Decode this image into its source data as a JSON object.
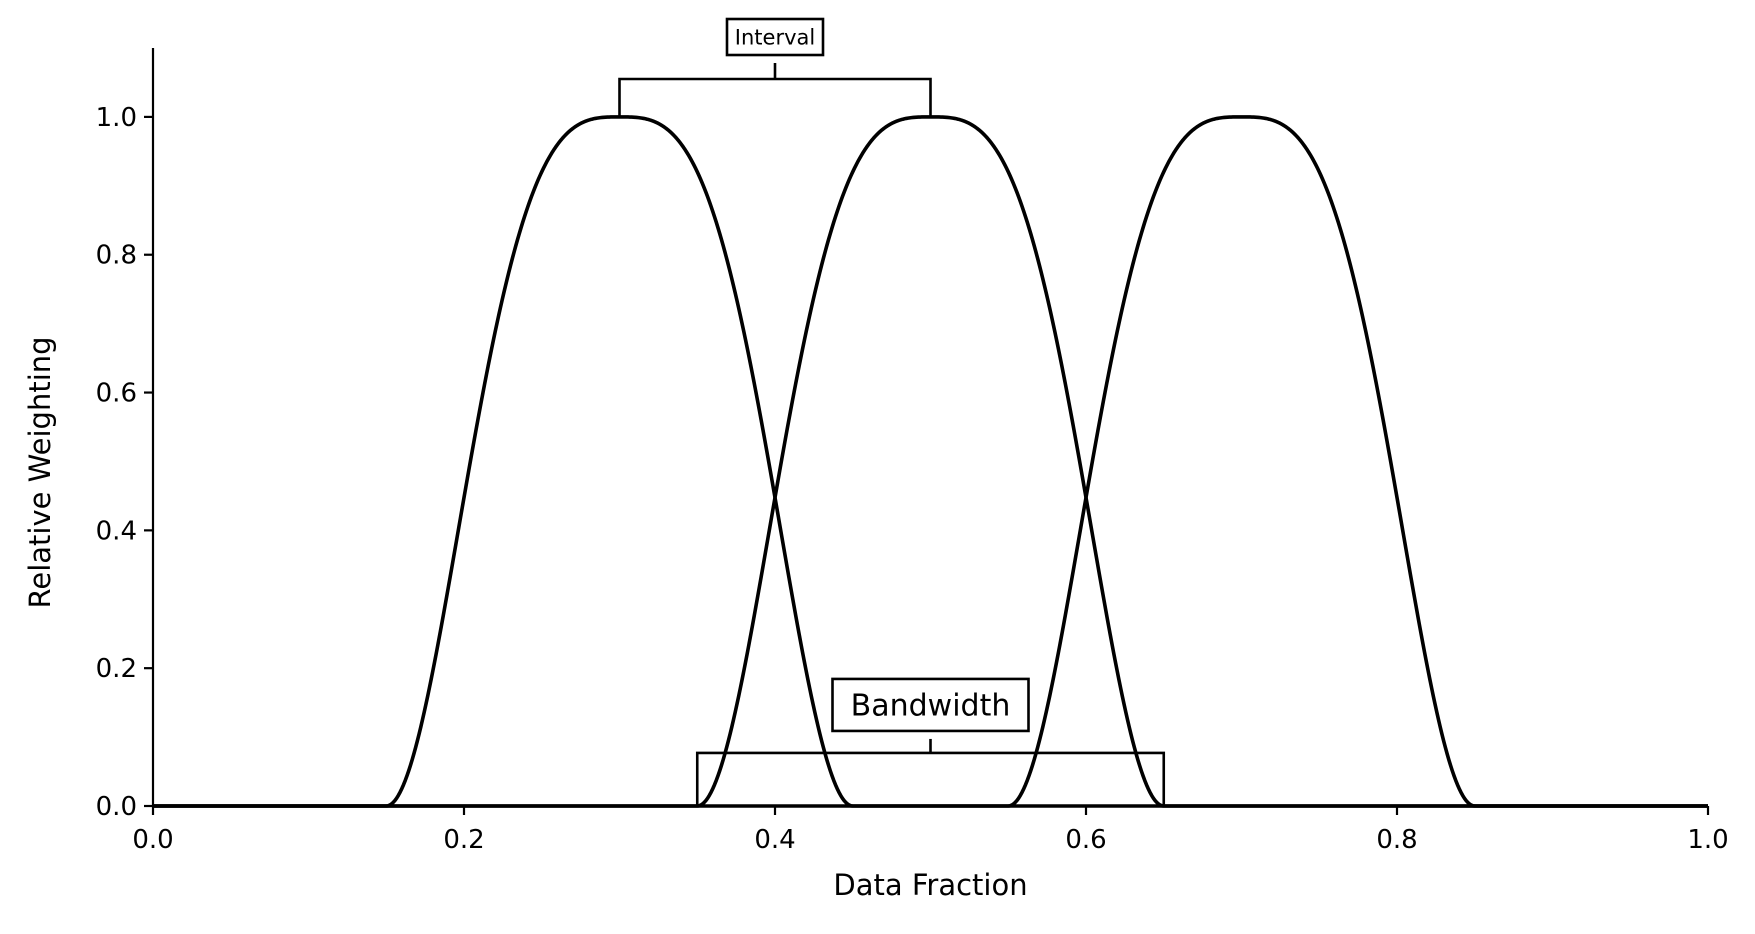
{
  "chart_data": {
    "type": "line",
    "title": "",
    "xlabel": "Data Fraction",
    "ylabel": "Relative Weighting",
    "xlim": [
      0.0,
      1.0
    ],
    "ylim": [
      0.0,
      1.1
    ],
    "x_ticks": [
      "0.0",
      "0.2",
      "0.4",
      "0.6",
      "0.8",
      "1.0"
    ],
    "x_tick_values": [
      0.0,
      0.2,
      0.4,
      0.6,
      0.8,
      1.0
    ],
    "y_ticks": [
      "0.0",
      "0.2",
      "0.4",
      "0.6",
      "0.8",
      "1.0"
    ],
    "y_tick_values": [
      0.0,
      0.2,
      0.4,
      0.6,
      0.8,
      1.0
    ],
    "grid": false,
    "legend": "none",
    "line_color": "#000000",
    "series": [
      {
        "center": 0.3,
        "bandwidth": 0.3
      },
      {
        "center": 0.5,
        "bandwidth": 0.3
      },
      {
        "center": 0.7,
        "bandwidth": 0.3
      }
    ],
    "annotations": [
      {
        "text": "Interval",
        "x_start": 0.3,
        "x_end": 0.5,
        "y": 1.055
      },
      {
        "text": "Bandwidth",
        "x_start": 0.35,
        "x_end": 0.65,
        "y": 0.077
      }
    ]
  }
}
